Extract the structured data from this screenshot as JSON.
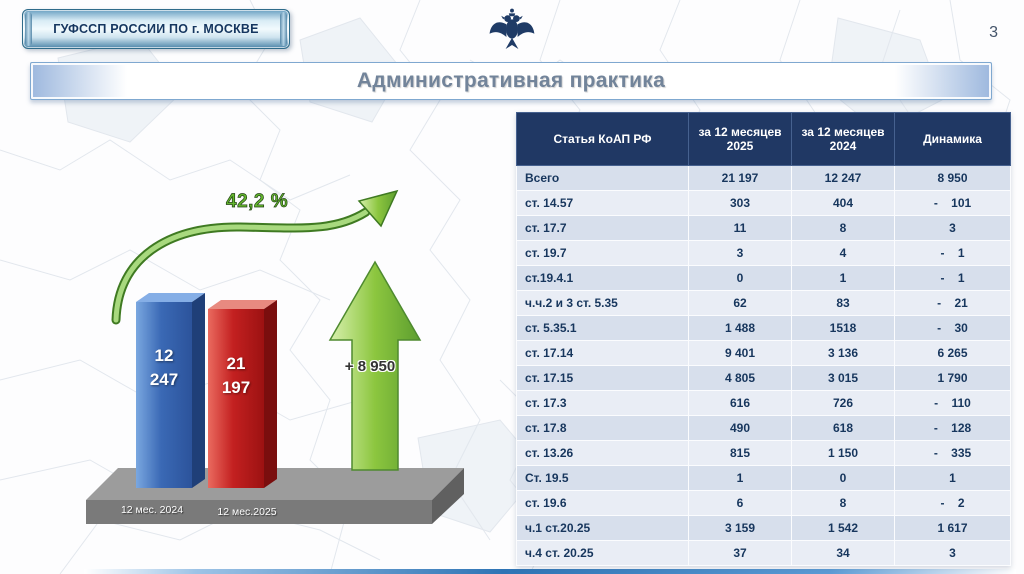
{
  "header": {
    "org_banner": "ГУФССП РОССИИ ПО г. МОСКВЕ",
    "page_number": "3",
    "title": "Административная практика"
  },
  "chart_data": [
    {
      "type": "bar",
      "title": "Административная практика",
      "categories": [
        "12 мес. 2024",
        "12 мес.2025"
      ],
      "values": [
        12247,
        21197
      ],
      "colors": [
        "#2E74B5",
        "#C00000"
      ],
      "bar_labels": [
        [
          "12",
          "247"
        ],
        [
          "21",
          "197"
        ]
      ],
      "growth_label": "42,2 %",
      "arrow_label": "+ 8 950",
      "ylim": [
        0,
        22000
      ],
      "grid": false,
      "legend": "none"
    },
    {
      "type": "table",
      "headers": [
        "Статья КоАП РФ",
        "за 12 месяцев 2025",
        "за 12 месяцев 2024",
        "Динамика"
      ],
      "rows": [
        [
          "Всего",
          "21 197",
          "12 247",
          "8 950"
        ],
        [
          "ст. 14.57",
          "303",
          "404",
          "-    101"
        ],
        [
          "ст. 17.7",
          "11",
          "8",
          "3"
        ],
        [
          "ст. 19.7",
          "3",
          "4",
          "-    1"
        ],
        [
          "ст.19.4.1",
          "0",
          "1",
          "-    1"
        ],
        [
          "ч.ч.2 и 3 ст. 5.35",
          "62",
          "83",
          "-    21"
        ],
        [
          "ст. 5.35.1",
          "1 488",
          "1518",
          "-    30"
        ],
        [
          "ст. 17.14",
          "9 401",
          "3 136",
          "6 265"
        ],
        [
          "ст. 17.15",
          "4 805",
          "3 015",
          "1 790"
        ],
        [
          "ст. 17.3",
          "616",
          "726",
          "-    110"
        ],
        [
          "ст. 17.8",
          "490",
          "618",
          "-    128"
        ],
        [
          "ст. 13.26",
          "815",
          "1 150",
          "-    335"
        ],
        [
          "Ст. 19.5",
          "1",
          "0",
          "1"
        ],
        [
          "ст. 19.6",
          "6",
          "8",
          "-    2"
        ],
        [
          "ч.1 ст.20.25",
          "3 159",
          "1 542",
          "1 617"
        ],
        [
          "ч.4 ст. 20.25",
          "37",
          "34",
          "3"
        ]
      ]
    }
  ],
  "colors": {
    "table_header_bg": "#203864",
    "row_alt_dark": "#D7DFEC",
    "row_alt_light": "#E9EDF5",
    "bar_blue": "#2E74B5",
    "bar_red": "#C00000",
    "arrow_green": "#8CC63F",
    "growth_text": "#64B52E",
    "title_text": "#72849A"
  }
}
